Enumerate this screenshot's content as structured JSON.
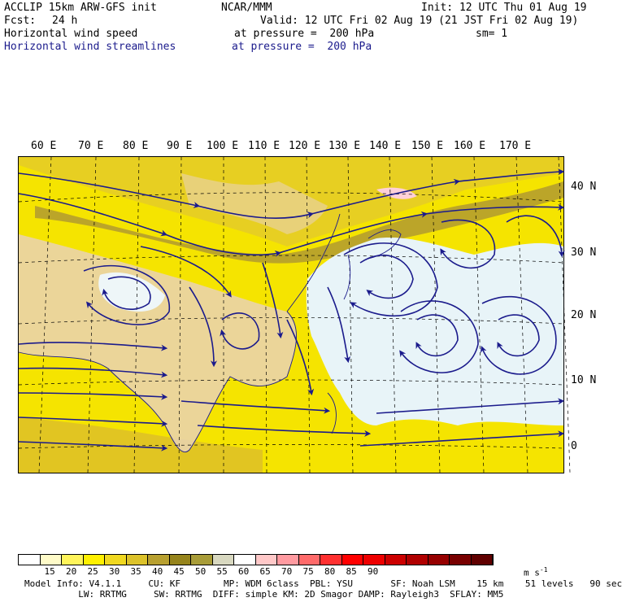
{
  "header": {
    "model": "ACCLIP 15km ARW-GFS init",
    "org": "NCAR/MMM",
    "init": "Init: 12 UTC Thu 01 Aug 19",
    "fcst_label": "Fcst:",
    "fcst_value": "24 h",
    "valid": "Valid: 12 UTC Fri 02 Aug 19 (21 JST Fri 02 Aug 19)",
    "field1": "Horizontal wind speed",
    "field1_level": "at pressure =  200 hPa",
    "smooth": "sm= 1",
    "field2": "Horizontal wind streamlines",
    "field2_level": "at pressure =  200 hPa"
  },
  "map": {
    "lon_labels": [
      "60 E",
      "70 E",
      "80 E",
      "90 E",
      "100 E",
      "110 E",
      "120 E",
      "130 E",
      "140 E",
      "150 E",
      "160 E",
      "170 E"
    ],
    "lat_labels": [
      "40 N",
      "30 N",
      "20 N",
      "10 N",
      "0"
    ],
    "colors": {
      "land": "#e9d2b4",
      "ocean": "#e8f4f8",
      "border": "#1b1b8c",
      "stream": "#1b1b8c"
    }
  },
  "colorbar": {
    "colors": [
      "#ffffff",
      "#fffbc8",
      "#fff45a",
      "#fff000",
      "#f0d820",
      "#dcc22a",
      "#b8a030",
      "#96841c",
      "#a89c38",
      "#d8d8c0",
      "#ffffff",
      "#ffc8c8",
      "#ff9aa0",
      "#ff6a6a",
      "#ff3030",
      "#ff0000",
      "#ee0000",
      "#cc0000",
      "#b00000",
      "#960000",
      "#780000",
      "#600000"
    ],
    "labels": [
      "15",
      "20",
      "25",
      "30",
      "35",
      "40",
      "45",
      "50",
      "55",
      "60",
      "65",
      "70",
      "75",
      "80",
      "85",
      "90"
    ],
    "unit": "m s",
    "unit_exp": "-1"
  },
  "footer": {
    "line1": "Model Info: V4.1.1     CU: KF        MP: WDM 6class  PBL: YSU       SF: Noah LSM    15 km    51 levels   90 sec",
    "line2": "          LW: RRTMG     SW: RRTMG  DIFF: simple KM: 2D Smagor DAMP: Rayleigh3  SFLAY: MM5"
  }
}
